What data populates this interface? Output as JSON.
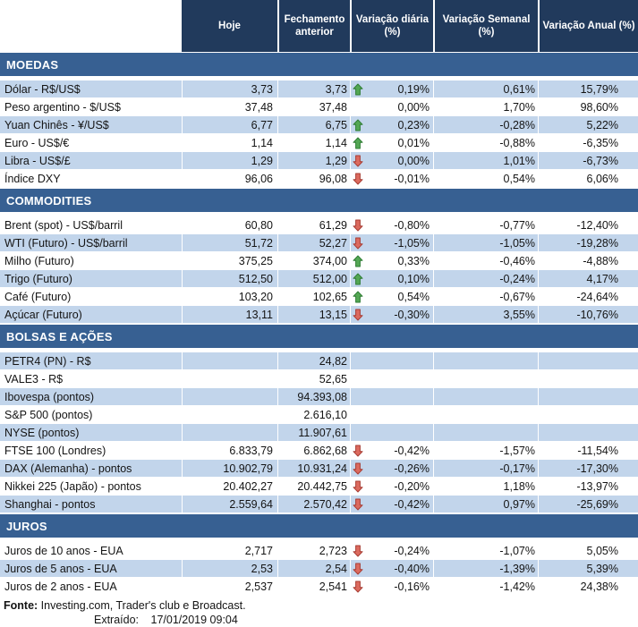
{
  "header": {
    "columns": [
      "Hoje",
      "Fechamento anterior",
      "Variação diária (%)",
      "Variação Semanal (%)",
      "Variação Anual (%)"
    ]
  },
  "sections": [
    {
      "title": "MOEDAS",
      "rows": [
        {
          "label": "Dólar - R$/US$",
          "hoje": "3,73",
          "fechamento": "3,73",
          "arrow": "up",
          "daily": "0,19%",
          "weekly": "0,61%",
          "annual": "15,79%"
        },
        {
          "label": "Peso argentino - $/US$",
          "hoje": "37,48",
          "fechamento": "37,48",
          "arrow": "none",
          "daily": "0,00%",
          "weekly": "1,70%",
          "annual": "98,60%"
        },
        {
          "label": "Yuan Chinês - ¥/US$",
          "hoje": "6,77",
          "fechamento": "6,75",
          "arrow": "up",
          "daily": "0,23%",
          "weekly": "-0,28%",
          "annual": "5,22%"
        },
        {
          "label": "Euro - US$/€",
          "hoje": "1,14",
          "fechamento": "1,14",
          "arrow": "up",
          "daily": "0,01%",
          "weekly": "-0,88%",
          "annual": "-6,35%"
        },
        {
          "label": "Libra - US$/£",
          "hoje": "1,29",
          "fechamento": "1,29",
          "arrow": "down",
          "daily": "0,00%",
          "weekly": "1,01%",
          "annual": "-6,73%"
        },
        {
          "label": "Índice DXY",
          "hoje": "96,06",
          "fechamento": "96,08",
          "arrow": "down",
          "daily": "-0,01%",
          "weekly": "0,54%",
          "annual": "6,06%"
        }
      ]
    },
    {
      "title": "COMMODITIES",
      "rows": [
        {
          "label": "Brent (spot) - US$/barril",
          "hoje": "60,80",
          "fechamento": "61,29",
          "arrow": "down",
          "daily": "-0,80%",
          "weekly": "-0,77%",
          "annual": "-12,40%"
        },
        {
          "label": "WTI (Futuro) - US$/barril",
          "hoje": "51,72",
          "fechamento": "52,27",
          "arrow": "down",
          "daily": "-1,05%",
          "weekly": "-1,05%",
          "annual": "-19,28%"
        },
        {
          "label": "Milho (Futuro)",
          "hoje": "375,25",
          "fechamento": "374,00",
          "arrow": "up",
          "daily": "0,33%",
          "weekly": "-0,46%",
          "annual": "-4,88%"
        },
        {
          "label": "Trigo (Futuro)",
          "hoje": "512,50",
          "fechamento": "512,00",
          "arrow": "up",
          "daily": "0,10%",
          "weekly": "-0,24%",
          "annual": "4,17%"
        },
        {
          "label": "Café (Futuro)",
          "hoje": "103,20",
          "fechamento": "102,65",
          "arrow": "up",
          "daily": "0,54%",
          "weekly": "-0,67%",
          "annual": "-24,64%"
        },
        {
          "label": "Açúcar (Futuro)",
          "hoje": "13,11",
          "fechamento": "13,15",
          "arrow": "down",
          "daily": "-0,30%",
          "weekly": "3,55%",
          "annual": "-10,76%"
        }
      ]
    },
    {
      "title": "BOLSAS E AÇÕES",
      "rows": [
        {
          "label": "PETR4 (PN) - R$",
          "hoje": "",
          "fechamento": "24,82",
          "arrow": "none",
          "daily": "",
          "weekly": "",
          "annual": ""
        },
        {
          "label": "VALE3 - R$",
          "hoje": "",
          "fechamento": "52,65",
          "arrow": "none",
          "daily": "",
          "weekly": "",
          "annual": ""
        },
        {
          "label": "Ibovespa (pontos)",
          "hoje": "",
          "fechamento": "94.393,08",
          "arrow": "none",
          "daily": "",
          "weekly": "",
          "annual": ""
        },
        {
          "label": "S&P 500 (pontos)",
          "hoje": "",
          "fechamento": "2.616,10",
          "arrow": "none",
          "daily": "",
          "weekly": "",
          "annual": ""
        },
        {
          "label": "NYSE (pontos)",
          "hoje": "",
          "fechamento": "11.907,61",
          "arrow": "none",
          "daily": "",
          "weekly": "",
          "annual": ""
        },
        {
          "label": "FTSE 100 (Londres)",
          "hoje": "6.833,79",
          "fechamento": "6.862,68",
          "arrow": "down",
          "daily": "-0,42%",
          "weekly": "-1,57%",
          "annual": "-11,54%"
        },
        {
          "label": "DAX (Alemanha) - pontos",
          "hoje": "10.902,79",
          "fechamento": "10.931,24",
          "arrow": "down",
          "daily": "-0,26%",
          "weekly": "-0,17%",
          "annual": "-17,30%"
        },
        {
          "label": "Nikkei 225 (Japão) - pontos",
          "hoje": "20.402,27",
          "fechamento": "20.442,75",
          "arrow": "down",
          "daily": "-0,20%",
          "weekly": "1,18%",
          "annual": "-13,97%"
        },
        {
          "label": "Shanghai - pontos",
          "hoje": "2.559,64",
          "fechamento": "2.570,42",
          "arrow": "down",
          "daily": "-0,42%",
          "weekly": "0,97%",
          "annual": "-25,69%"
        }
      ]
    },
    {
      "title": "JUROS",
      "rows": [
        {
          "label": "Juros de 10 anos - EUA",
          "hoje": "2,717",
          "fechamento": "2,723",
          "arrow": "down",
          "daily": "-0,24%",
          "weekly": "-1,07%",
          "annual": "5,05%"
        },
        {
          "label": "Juros de 5 anos - EUA",
          "hoje": "2,53",
          "fechamento": "2,54",
          "arrow": "down",
          "daily": "-0,40%",
          "weekly": "-1,39%",
          "annual": "5,39%"
        },
        {
          "label": "Juros de 2 anos - EUA",
          "hoje": "2,537",
          "fechamento": "2,541",
          "arrow": "down",
          "daily": "-0,16%",
          "weekly": "-1,42%",
          "annual": "24,38%"
        }
      ]
    }
  ],
  "footer": {
    "fonte_label": "Fonte:",
    "fonte_text": "Investing.com, Trader's club e Broadcast.",
    "extraido_label": "Extraído:",
    "extraido_value": "17/01/2019 09:04"
  },
  "colors": {
    "header_bg": "#213a5c",
    "section_bg": "#376092",
    "row_shaded": "#c2d5eb",
    "up_arrow_fill": "#54a754",
    "up_arrow_border": "#2e7d33",
    "down_arrow_fill": "#dc6a5e",
    "down_arrow_border": "#a73c33"
  }
}
